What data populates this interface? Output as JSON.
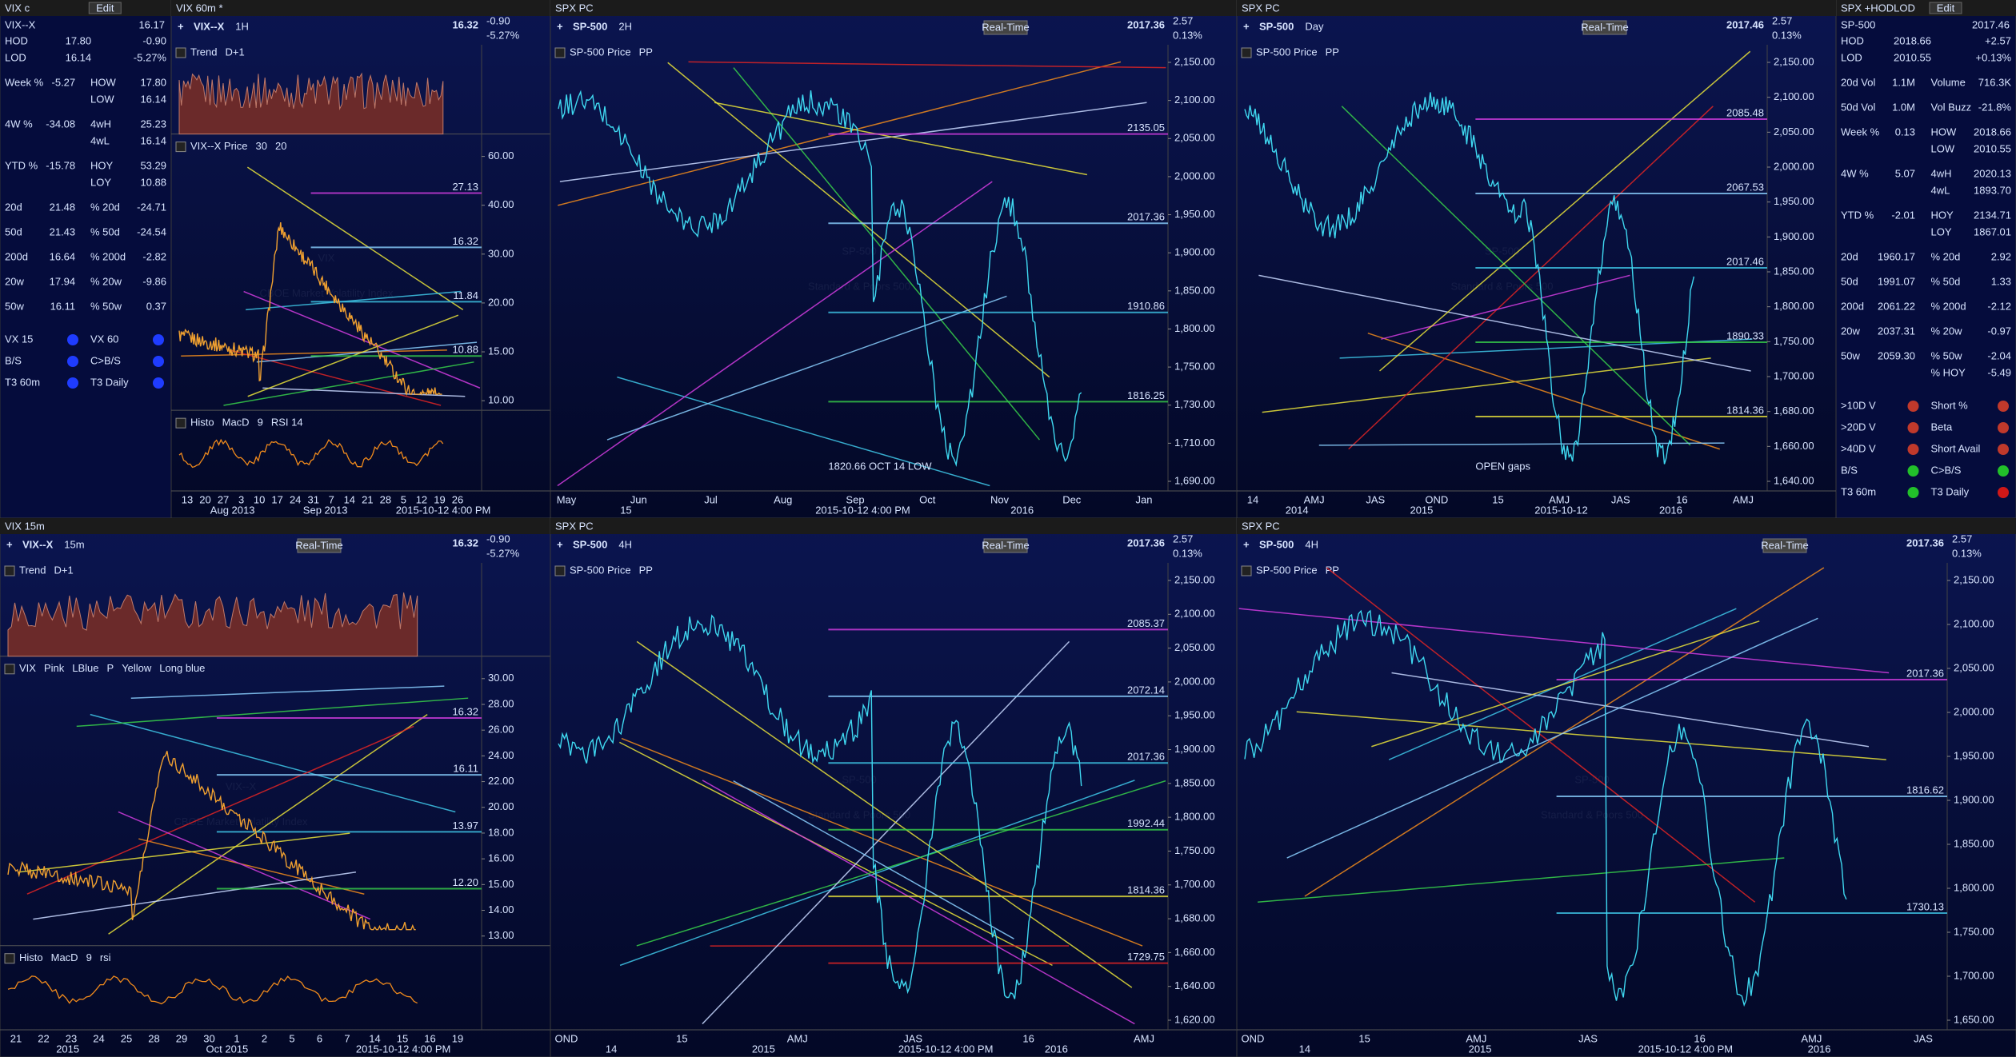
{
  "watchlist_left": {
    "title": "VIX c",
    "edit": "Edit",
    "symbol": "VIX--X",
    "last": "16.17",
    "rows": [
      [
        "HOD",
        "17.80",
        "-0.90"
      ],
      [
        "LOD",
        "16.14",
        "-5.27%"
      ],
      [
        "Week %",
        "-5.27",
        "HOW",
        "17.80"
      ],
      [
        "LOW",
        "16.14"
      ],
      [
        "4W %",
        "-34.08",
        "4wH",
        "25.23"
      ],
      [
        "4wL",
        "16.14"
      ],
      [
        "YTD %",
        "-15.78",
        "HOY",
        "53.29"
      ],
      [
        "LOY",
        "10.88"
      ],
      [
        "20d",
        "21.48",
        "% 20d",
        "-24.71"
      ],
      [
        "50d",
        "21.43",
        "% 50d",
        "-24.54"
      ],
      [
        "200d",
        "16.64",
        "% 200d",
        "-2.82"
      ],
      [
        "20w",
        "17.94",
        "% 20w",
        "-9.86"
      ],
      [
        "50w",
        "16.11",
        "% 50w",
        "0.37"
      ]
    ],
    "dots": [
      {
        "label": "VX 15",
        "color": "#1f3cff"
      },
      {
        "label": "VX 60",
        "color": "#1f3cff"
      },
      {
        "label": "B/S",
        "color": "#1f3cff"
      },
      {
        "label": "C>B/S",
        "color": "#1f3cff"
      },
      {
        "label": "T3 60m",
        "color": "#1f3cff"
      },
      {
        "label": "T3 Daily",
        "color": "#1f3cff"
      }
    ]
  },
  "watchlist_right": {
    "title": "SPX +HODLOD",
    "edit": "Edit",
    "symbol": "SP-500",
    "last": "2017.46",
    "rows": [
      [
        "HOD",
        "2018.66",
        "+2.57"
      ],
      [
        "LOD",
        "2010.55",
        "+0.13%"
      ],
      [
        "20d Vol",
        "1.1M",
        "Volume",
        "716.3K"
      ],
      [
        "50d Vol",
        "1.0M",
        "Vol Buzz",
        "-21.8%"
      ],
      [
        "Week %",
        "0.13",
        "HOW",
        "2018.66"
      ],
      [
        "LOW",
        "2010.55"
      ],
      [
        "4W %",
        "5.07",
        "4wH",
        "2020.13"
      ],
      [
        "4wL",
        "1893.70"
      ],
      [
        "YTD %",
        "-2.01",
        "HOY",
        "2134.71"
      ],
      [
        "LOY",
        "1867.01"
      ],
      [
        "20d",
        "1960.17",
        "% 20d",
        "2.92"
      ],
      [
        "50d",
        "1991.07",
        "% 50d",
        "1.33"
      ],
      [
        "200d",
        "2061.22",
        "% 200d",
        "-2.12"
      ],
      [
        "20w",
        "2037.31",
        "% 20w",
        "-0.97"
      ],
      [
        "50w",
        "2059.30",
        "% 50w",
        "-2.04"
      ],
      [
        "% HOY",
        "-5.49"
      ]
    ],
    "dots": [
      {
        "label": ">10D V",
        "color": "#c0392b"
      },
      {
        "label": "Short %",
        "color": "#c0392b"
      },
      {
        "label": ">20D V",
        "color": "#c0392b"
      },
      {
        "label": "Beta",
        "color": "#c0392b"
      },
      {
        "label": ">40D V",
        "color": "#c0392b"
      },
      {
        "label": "Short Avail",
        "color": "#c0392b"
      },
      {
        "label": "B/S",
        "color": "#22c02a"
      },
      {
        "label": "C>B/S",
        "color": "#22c02a"
      },
      {
        "label": "T3 60m",
        "color": "#22c02a"
      },
      {
        "label": "T3 Daily",
        "color": "#d01818"
      }
    ]
  },
  "panels": [
    {
      "window": "VIX 60m *",
      "symbol": "VIX--X",
      "interval": "1H",
      "price": "16.32",
      "change": "-0.90",
      "pct": "-5.27%",
      "studies": [
        [
          "Trend",
          "D+1"
        ],
        [
          "VIX--X Price",
          "30",
          "20"
        ],
        [
          "Histo",
          "MacD",
          "9",
          "RSI 14"
        ]
      ],
      "axis": [
        "60.00",
        "40.00",
        "30.00",
        "20.00",
        "15.00",
        "10.00"
      ],
      "xaxis": [
        "13",
        "20",
        "27",
        "3",
        "10",
        "17",
        "24",
        "31",
        "7",
        "14",
        "21",
        "28",
        "5",
        "12",
        "19",
        "26"
      ],
      "xnotes": [
        "Aug 2013",
        "Sep 2013",
        "2015-10-12 4:00 PM"
      ],
      "watermark": [
        "VIX",
        "CBOE Market Volatility Index"
      ],
      "levels": [
        "27.13",
        "16.32",
        "11.84",
        "10.88"
      ],
      "annotations": [],
      "style": "vix"
    },
    {
      "window": "SPX PC",
      "symbol": "SP-500",
      "interval": "2H",
      "realtime": "Real-Time",
      "price": "2017.36",
      "change": "2.57",
      "pct": "0.13%",
      "studies": [
        [
          "SP-500 Price",
          "PP"
        ]
      ],
      "axis": [
        "2,150.00",
        "2,100.00",
        "2,050.00",
        "2,000.00",
        "1,950.00",
        "1,900.00",
        "1,850.00",
        "1,800.00",
        "1,750.00",
        "1,730.00",
        "1,710.00",
        "1,690.00"
      ],
      "xaxis": [
        "May",
        "Jun",
        "Jul",
        "Aug",
        "Sep",
        "Oct",
        "Nov",
        "Dec",
        "Jan"
      ],
      "xnotes": [
        "15",
        "2015-10-12 4:00 PM",
        "2016"
      ],
      "watermark": [
        "SP-500",
        "Standard & Poors 500"
      ],
      "levels": [
        "2135.05",
        "2017.36",
        "1910.86",
        "1816.25"
      ],
      "annotations": [
        "1820.66 OCT 14 LOW"
      ],
      "style": "spx"
    },
    {
      "window": "SPX PC",
      "symbol": "SP-500",
      "interval": "Day",
      "realtime": "Real-Time",
      "price": "2017.46",
      "change": "2.57",
      "pct": "0.13%",
      "studies": [
        [
          "SP-500 Price",
          "PP"
        ]
      ],
      "axis": [
        "2,150.00",
        "2,100.00",
        "2,050.00",
        "2,000.00",
        "1,950.00",
        "1,900.00",
        "1,850.00",
        "1,800.00",
        "1,750.00",
        "1,700.00",
        "1,680.00",
        "1,660.00",
        "1,640.00"
      ],
      "xaxis": [
        "14",
        "AMJ",
        "JAS",
        "OND",
        "15",
        "AMJ",
        "JAS",
        "16",
        "AMJ"
      ],
      "xnotes": [
        "2014",
        "2015",
        "2015-10-12",
        "2016"
      ],
      "watermark": [
        "SP-500",
        "Standard & Poors 500"
      ],
      "levels": [
        "2085.48",
        "2067.53",
        "2017.46",
        "1890.33",
        "1814.36"
      ],
      "annotations": [
        "OPEN gaps"
      ],
      "style": "spx"
    },
    {
      "window": "VIX 15m",
      "symbol": "VIX--X",
      "interval": "15m",
      "realtime": "Real-Time",
      "price": "16.32",
      "change": "-0.90",
      "pct": "-5.27%",
      "studies": [
        [
          "Trend",
          "D+1"
        ],
        [
          "VIX",
          "Pink",
          "LBlue",
          "P",
          "Yellow",
          "Long blue"
        ],
        [
          "Histo",
          "MacD",
          "9",
          "rsi"
        ]
      ],
      "axis": [
        "30.00",
        "28.00",
        "26.00",
        "24.00",
        "22.00",
        "20.00",
        "18.00",
        "16.00",
        "15.00",
        "14.00",
        "13.00"
      ],
      "xaxis": [
        "21",
        "22",
        "23",
        "24",
        "25",
        "28",
        "29",
        "30",
        "1",
        "2",
        "5",
        "6",
        "7",
        "14",
        "15",
        "16",
        "19"
      ],
      "xnotes": [
        "2015",
        "Oct 2015",
        "2015-10-12 4:00 PM"
      ],
      "watermark": [
        "VIX--X",
        "CBOE Market Volatility Index"
      ],
      "levels": [
        "16.32",
        "16.11",
        "13.97",
        "12.20"
      ],
      "annotations": [],
      "style": "vix"
    },
    {
      "window": "SPX PC",
      "symbol": "SP-500",
      "interval": "4H",
      "realtime": "Real-Time",
      "price": "2017.36",
      "change": "2.57",
      "pct": "0.13%",
      "studies": [
        [
          "SP-500 Price",
          "PP"
        ]
      ],
      "axis": [
        "2,150.00",
        "2,100.00",
        "2,050.00",
        "2,000.00",
        "1,950.00",
        "1,900.00",
        "1,850.00",
        "1,800.00",
        "1,750.00",
        "1,700.00",
        "1,680.00",
        "1,660.00",
        "1,640.00",
        "1,620.00"
      ],
      "xaxis": [
        "OND",
        "15",
        "AMJ",
        "JAS",
        "16",
        "AMJ"
      ],
      "xnotes": [
        "14",
        "2015",
        "2015-10-12 4:00 PM",
        "2016"
      ],
      "watermark": [
        "SP-500",
        "Standard & Poors 500"
      ],
      "levels": [
        "2085.37",
        "2072.14",
        "2017.36",
        "1992.44",
        "1814.36",
        "1729.75"
      ],
      "annotations": [],
      "style": "spx"
    },
    {
      "window": "SPX PC",
      "symbol": "SP-500",
      "interval": "4H",
      "realtime": "Real-Time",
      "price": "2017.36",
      "change": "2.57",
      "pct": "0.13%",
      "studies": [
        [
          "SP-500 Price",
          "PP"
        ]
      ],
      "axis": [
        "2,150.00",
        "2,100.00",
        "2,050.00",
        "2,000.00",
        "1,950.00",
        "1,900.00",
        "1,850.00",
        "1,800.00",
        "1,750.00",
        "1,700.00",
        "1,650.00"
      ],
      "xaxis": [
        "OND",
        "15",
        "AMJ",
        "JAS",
        "16",
        "AMJ",
        "JAS"
      ],
      "xnotes": [
        "14",
        "2015",
        "2015-10-12 4:00 PM",
        "2016"
      ],
      "watermark": [
        "SP-500",
        "Standard & Poors 500"
      ],
      "levels": [
        "2017.36",
        "1816.62",
        "1730.13"
      ],
      "annotations": [],
      "style": "spx"
    }
  ]
}
